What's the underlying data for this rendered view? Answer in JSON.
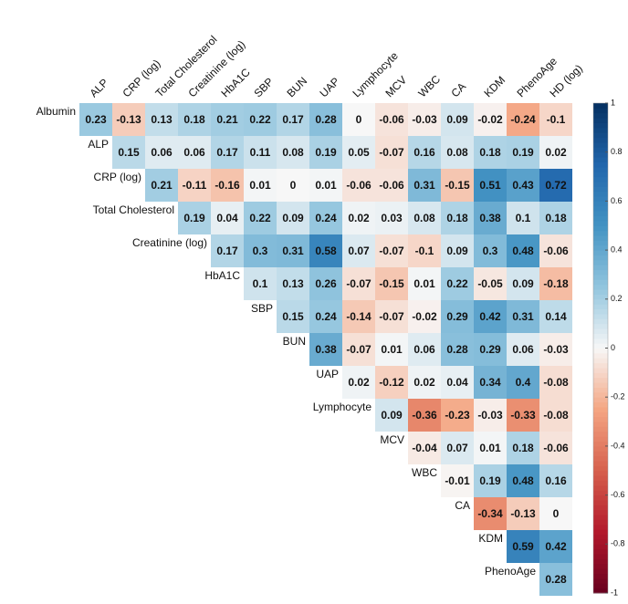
{
  "chart_data": {
    "type": "heatmap",
    "columns": [
      "ALP",
      "CRP (log)",
      "Total Cholesterol",
      "Creatinine (log)",
      "HbA1C",
      "SBP",
      "BUN",
      "UAP",
      "Lymphocyte",
      "MCV",
      "WBC",
      "CA",
      "KDM",
      "PhenoAge",
      "HD (log)"
    ],
    "rows": [
      "Albumin",
      "ALP",
      "CRP (log)",
      "Total Cholesterol",
      "Creatinine (log)",
      "HbA1C",
      "SBP",
      "BUN",
      "UAP",
      "Lymphocyte",
      "MCV",
      "WBC",
      "CA",
      "KDM",
      "PhenoAge"
    ],
    "values": [
      [
        0.23,
        -0.13,
        0.13,
        0.18,
        0.21,
        0.22,
        0.17,
        0.28,
        0,
        -0.06,
        -0.03,
        0.09,
        -0.02,
        -0.24,
        -0.1
      ],
      [
        null,
        0.15,
        0.06,
        0.06,
        0.17,
        0.11,
        0.08,
        0.19,
        0.05,
        -0.07,
        0.16,
        0.08,
        0.18,
        0.19,
        0.02
      ],
      [
        null,
        null,
        0.21,
        -0.11,
        -0.16,
        0.01,
        0,
        0.01,
        -0.06,
        -0.06,
        0.31,
        -0.15,
        0.51,
        0.43,
        0.72
      ],
      [
        null,
        null,
        null,
        0.19,
        0.04,
        0.22,
        0.09,
        0.24,
        0.02,
        0.03,
        0.08,
        0.18,
        0.38,
        0.1,
        0.18
      ],
      [
        null,
        null,
        null,
        null,
        0.17,
        0.3,
        0.31,
        0.58,
        0.07,
        -0.07,
        -0.1,
        0.09,
        0.3,
        0.48,
        -0.06
      ],
      [
        null,
        null,
        null,
        null,
        null,
        0.1,
        0.13,
        0.26,
        -0.07,
        -0.15,
        0.01,
        0.22,
        -0.05,
        0.09,
        -0.18
      ],
      [
        null,
        null,
        null,
        null,
        null,
        null,
        0.15,
        0.24,
        -0.14,
        -0.07,
        -0.02,
        0.29,
        0.42,
        0.31,
        0.14
      ],
      [
        null,
        null,
        null,
        null,
        null,
        null,
        null,
        0.38,
        -0.07,
        0.01,
        0.06,
        0.28,
        0.29,
        0.06,
        -0.03
      ],
      [
        null,
        null,
        null,
        null,
        null,
        null,
        null,
        null,
        0.02,
        -0.12,
        0.02,
        0.04,
        0.34,
        0.4,
        -0.08
      ],
      [
        null,
        null,
        null,
        null,
        null,
        null,
        null,
        null,
        null,
        0.09,
        -0.36,
        -0.23,
        -0.03,
        -0.33,
        -0.08
      ],
      [
        null,
        null,
        null,
        null,
        null,
        null,
        null,
        null,
        null,
        null,
        -0.04,
        0.07,
        0.01,
        0.18,
        -0.06
      ],
      [
        null,
        null,
        null,
        null,
        null,
        null,
        null,
        null,
        null,
        null,
        null,
        -0.01,
        0.19,
        0.48,
        0.16
      ],
      [
        null,
        null,
        null,
        null,
        null,
        null,
        null,
        null,
        null,
        null,
        null,
        null,
        -0.34,
        -0.13,
        0
      ],
      [
        null,
        null,
        null,
        null,
        null,
        null,
        null,
        null,
        null,
        null,
        null,
        null,
        null,
        0.59,
        0.42
      ],
      [
        null,
        null,
        null,
        null,
        null,
        null,
        null,
        null,
        null,
        null,
        null,
        null,
        null,
        null,
        0.28
      ]
    ],
    "colors": [
      "#67001F",
      "#B2182B",
      "#D6604D",
      "#F4A582",
      "#F7F7F7",
      "#92C5DE",
      "#4393C3",
      "#2166AC",
      "#053061"
    ],
    "clim": [
      -1,
      1
    ],
    "yticks": [
      1,
      0.8,
      0.6,
      0.4,
      0.2,
      0,
      -0.2,
      -0.4,
      -0.6,
      -0.8,
      -1
    ]
  }
}
